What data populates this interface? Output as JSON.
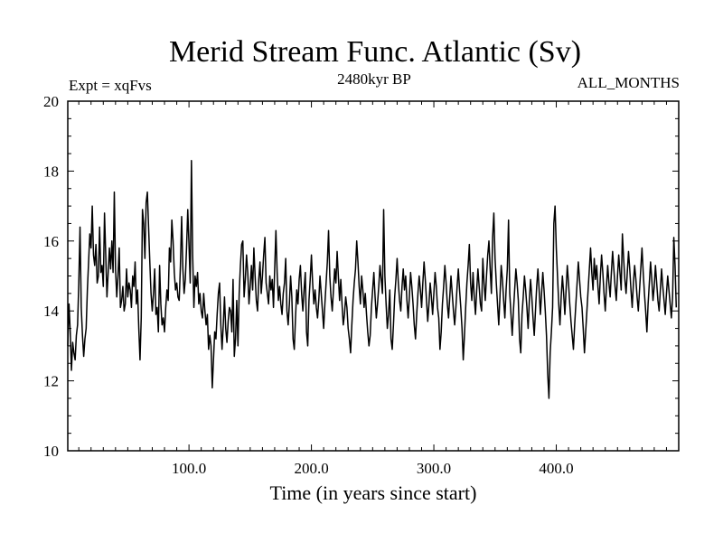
{
  "chart_data": {
    "type": "line",
    "title": "Merid Stream Func. Atlantic (Sv)",
    "subtitle_left": "Expt = xqFvs",
    "subtitle_center": "2480kyr BP",
    "subtitle_right": "ALL_MONTHS",
    "xlabel": "Time (in years since start)",
    "ylabel": "",
    "xlim": [
      1,
      500
    ],
    "ylim": [
      10,
      20
    ],
    "x_ticks": [
      100,
      200,
      300,
      400
    ],
    "x_tick_labels": [
      "100.0",
      "200.0",
      "300.0",
      "400.0"
    ],
    "y_ticks": [
      10,
      12,
      14,
      16,
      18,
      20
    ],
    "y_tick_labels": [
      "10",
      "12",
      "14",
      "16",
      "18",
      "20"
    ],
    "grid": false,
    "series": [
      {
        "name": "Merid Stream Func. Atlantic",
        "x_start": 1,
        "x_step": 1,
        "values": [
          13.0,
          14.2,
          13.4,
          12.3,
          13.1,
          12.8,
          12.6,
          13.3,
          13.6,
          14.8,
          16.4,
          14.1,
          13.3,
          12.7,
          13.2,
          13.5,
          14.6,
          15.4,
          16.2,
          15.8,
          17.0,
          15.6,
          15.3,
          15.9,
          14.8,
          15.0,
          16.4,
          15.1,
          15.3,
          14.7,
          16.8,
          15.6,
          14.4,
          15.1,
          15.8,
          15.2,
          16.0,
          15.1,
          17.4,
          15.2,
          14.4,
          15.0,
          15.8,
          14.1,
          14.3,
          14.7,
          14.0,
          14.2,
          15.2,
          14.4,
          14.8,
          14.6,
          14.1,
          15.0,
          14.7,
          15.4,
          14.2,
          14.6,
          13.5,
          12.6,
          13.8,
          16.9,
          16.5,
          15.5,
          17.1,
          17.4,
          16.4,
          15.4,
          14.5,
          14.0,
          14.5,
          15.2,
          13.9,
          14.1,
          13.4,
          15.3,
          14.2,
          13.6,
          13.8,
          13.4,
          14.1,
          14.6,
          14.3,
          15.8,
          15.4,
          16.6,
          16.0,
          15.1,
          14.6,
          14.8,
          14.4,
          14.3,
          15.3,
          16.7,
          15.2,
          14.5,
          14.9,
          15.8,
          16.9,
          15.9,
          14.8,
          18.3,
          15.6,
          14.1,
          15.0,
          14.7,
          15.1,
          14.2,
          14.5,
          14.0,
          13.8,
          14.5,
          14.0,
          13.6,
          13.9,
          12.9,
          13.3,
          13.0,
          11.8,
          12.6,
          13.4,
          13.2,
          13.9,
          14.5,
          14.8,
          13.6,
          12.9,
          13.6,
          14.4,
          13.5,
          13.1,
          13.7,
          14.1,
          14.0,
          13.4,
          14.9,
          12.7,
          13.2,
          14.3,
          13.0,
          14.5,
          15.3,
          15.9,
          16.0,
          14.4,
          14.9,
          15.6,
          15.1,
          14.2,
          14.7,
          15.3,
          14.6,
          15.8,
          15.0,
          14.3,
          14.0,
          14.9,
          15.4,
          14.5,
          15.0,
          15.6,
          16.1,
          14.8,
          14.5,
          14.2,
          15.0,
          14.6,
          14.9,
          14.1,
          15.2,
          16.3,
          15.1,
          14.3,
          14.7,
          14.2,
          13.9,
          14.5,
          14.8,
          15.5,
          14.0,
          13.6,
          14.2,
          15.0,
          14.4,
          13.2,
          12.9,
          13.8,
          14.6,
          14.2,
          14.9,
          15.3,
          14.5,
          14.0,
          14.6,
          15.1,
          13.4,
          13.0,
          14.3,
          14.9,
          15.6,
          14.8,
          14.2,
          14.6,
          14.1,
          13.8,
          14.3,
          15.0,
          14.5,
          14.0,
          13.5,
          14.2,
          14.8,
          15.4,
          16.3,
          15.0,
          14.4,
          14.0,
          14.6,
          15.2,
          14.8,
          15.7,
          15.0,
          14.3,
          14.9,
          14.2,
          13.6,
          13.9,
          14.4,
          14.1,
          13.5,
          13.2,
          12.8,
          13.6,
          14.3,
          14.8,
          15.2,
          16.0,
          15.4,
          14.7,
          14.2,
          15.0,
          14.6,
          14.1,
          14.5,
          13.9,
          13.4,
          13.0,
          13.3,
          14.1,
          14.6,
          15.1,
          14.4,
          13.8,
          14.2,
          14.7,
          15.3,
          14.9,
          14.5,
          16.9,
          15.0,
          14.2,
          13.5,
          13.9,
          14.6,
          13.2,
          12.9,
          13.6,
          14.4,
          14.9,
          15.5,
          14.8,
          14.3,
          14.0,
          14.7,
          15.2,
          14.6,
          15.0,
          14.3,
          13.8,
          14.4,
          15.1,
          14.7,
          14.2,
          13.6,
          13.2,
          13.9,
          14.5,
          15.0,
          14.6,
          14.1,
          14.8,
          15.4,
          14.9,
          14.3,
          13.7,
          14.2,
          14.8,
          14.4,
          13.9,
          14.5,
          15.1,
          14.7,
          14.1,
          13.8,
          12.9,
          13.4,
          14.2,
          14.7,
          15.3,
          14.8,
          14.2,
          13.8,
          14.4,
          15.0,
          14.5,
          14.0,
          13.6,
          14.1,
          14.7,
          15.2,
          14.6,
          14.1,
          13.5,
          12.6,
          13.3,
          14.1,
          14.8,
          15.3,
          15.9,
          14.8,
          14.3,
          15.1,
          14.4,
          13.9,
          14.6,
          15.2,
          14.7,
          14.2,
          14.0,
          15.5,
          14.8,
          14.3,
          15.0,
          15.6,
          16.0,
          15.2,
          14.5,
          16.1,
          16.8,
          15.5,
          14.8,
          14.2,
          13.6,
          14.4,
          15.3,
          14.9,
          14.3,
          13.8,
          14.6,
          15.2,
          16.6,
          14.5,
          13.9,
          13.3,
          14.0,
          14.6,
          15.2,
          14.8,
          14.3,
          13.2,
          12.8,
          13.9,
          14.4,
          15.0,
          14.6,
          14.1,
          13.5,
          14.3,
          14.9,
          14.4,
          13.8,
          13.3,
          14.0,
          14.7,
          15.2,
          14.6,
          13.9,
          14.5,
          15.1,
          14.6,
          14.0,
          13.3,
          12.2,
          11.5,
          12.8,
          13.4,
          14.1,
          16.5,
          17.0,
          15.8,
          15.0,
          14.2,
          13.6,
          14.4,
          15.0,
          14.5,
          13.9,
          14.6,
          15.3,
          14.8,
          14.2,
          13.7,
          13.3,
          12.9,
          13.6,
          14.2,
          14.8,
          15.4,
          14.9,
          14.4,
          14.1,
          13.5,
          12.8,
          13.4,
          14.0,
          14.6,
          15.2,
          15.8,
          15.1,
          14.6,
          15.5,
          14.9,
          15.3,
          14.7,
          14.2,
          15.0,
          15.6,
          15.1,
          14.5,
          14.0,
          14.7,
          15.3,
          14.8,
          14.4,
          15.1,
          15.7,
          15.2,
          14.7,
          14.3,
          15.0,
          15.6,
          15.1,
          14.6,
          16.2,
          15.5,
          14.9,
          14.5,
          15.1,
          15.7,
          15.2,
          14.6,
          14.1,
          14.8,
          15.3,
          14.9,
          14.4,
          14.0,
          14.6,
          15.2,
          15.8,
          15.1,
          14.5,
          14.0,
          13.4,
          14.2,
          14.8,
          15.4,
          14.9,
          14.3,
          14.7,
          15.3,
          14.8,
          14.3,
          14.0,
          14.6,
          15.2,
          14.7,
          14.3,
          13.9,
          14.5,
          15.0,
          14.6,
          14.2,
          13.8,
          14.4,
          16.1,
          15.3,
          14.1
        ]
      }
    ]
  }
}
